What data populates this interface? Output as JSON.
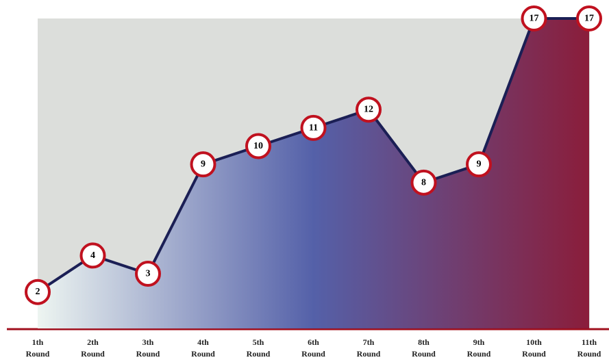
{
  "chart_data": {
    "type": "area",
    "categories": [
      "1th Round",
      "2th Round",
      "3th Round",
      "4th Round",
      "5th Round",
      "6th Round",
      "7th Round",
      "8th Round",
      "9th Round",
      "10th Round",
      "11th Round"
    ],
    "values": [
      2,
      4,
      3,
      9,
      10,
      11,
      12,
      8,
      9,
      17,
      17
    ],
    "line_color": "#1b1f55",
    "marker_color": "#c0111f",
    "fill_colors": [
      "#eef6f2",
      "#4d5aa6",
      "#861332"
    ]
  }
}
